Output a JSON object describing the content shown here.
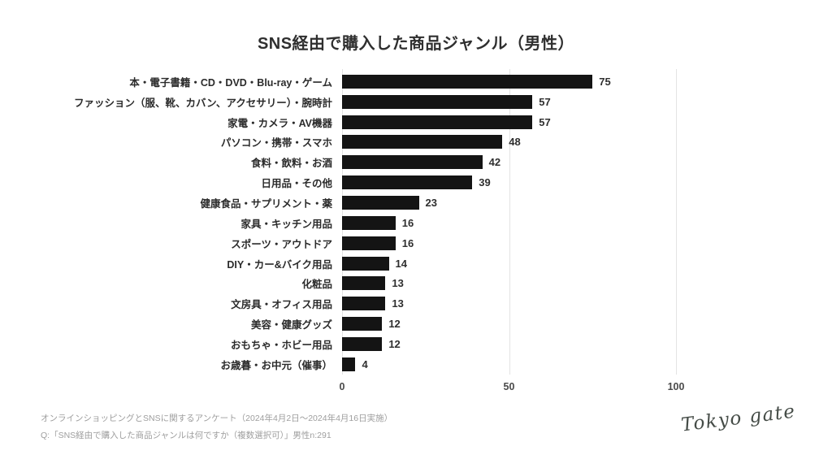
{
  "title": "SNS経由で購入した商品ジャンル（男性）",
  "chart_data": {
    "type": "bar",
    "orientation": "horizontal",
    "title": "SNS経由で購入した商品ジャンル（男性）",
    "categories": [
      "本・電子書籍・CD・DVD・Blu-ray・ゲーム",
      "ファッション（服、靴、カバン、アクセサリー）・腕時計",
      "家電・カメラ・AV機器",
      "パソコン・携帯・スマホ",
      "食料・飲料・お酒",
      "日用品・その他",
      "健康食品・サプリメント・薬",
      "家具・キッチン用品",
      "スポーツ・アウトドア",
      "DIY・カー&バイク用品",
      "化粧品",
      "文房具・オフィス用品",
      "美容・健康グッズ",
      "おもちゃ・ホビー用品",
      "お歳暮・お中元（催事）"
    ],
    "values": [
      75,
      57,
      57,
      48,
      42,
      39,
      23,
      16,
      16,
      14,
      13,
      13,
      12,
      12,
      4
    ],
    "xlabel": "",
    "ylabel": "",
    "xlim": [
      0,
      100
    ],
    "xticks": [
      0,
      50,
      100
    ],
    "grid": "vertical-light",
    "value_labels": true,
    "legend": "none"
  },
  "footer": {
    "line1": "オンラインショッピングとSNSに関するアンケート（2024年4月2日～2024年4月16日実施）",
    "line2": "Q:「SNS経由で購入した商品ジャンルは何ですか（複数選択可）」男性n:291"
  },
  "logo": {
    "text": "Tokyo gate"
  },
  "colors": {
    "bar": "#141414",
    "title_text": "#2f2f2f",
    "category_text": "#2b2b2b",
    "tick_text": "#4a4a4a",
    "gridline": "#e3e3e3",
    "footer_text": "#9e9e9e",
    "logo_text": "#454c47",
    "background": "#ffffff"
  }
}
